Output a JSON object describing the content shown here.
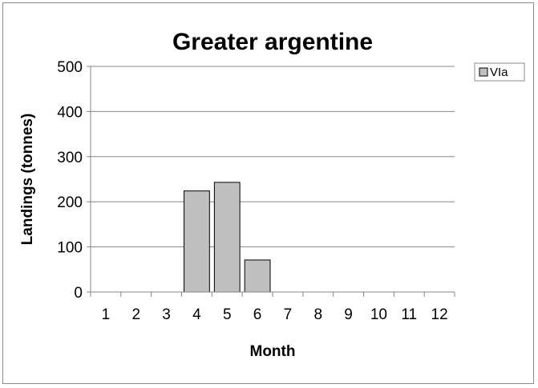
{
  "chart_data": {
    "type": "bar",
    "title": "Greater argentine",
    "xlabel": "Month",
    "ylabel": "Landings (tonnes)",
    "ylim": [
      0,
      500
    ],
    "yticks": [
      0,
      100,
      200,
      300,
      400,
      500
    ],
    "categories": [
      "1",
      "2",
      "3",
      "4",
      "5",
      "6",
      "7",
      "8",
      "9",
      "10",
      "11",
      "12"
    ],
    "series": [
      {
        "name": "VIa",
        "values": [
          0,
          0,
          0,
          224,
          243,
          71,
          0,
          0,
          0,
          0,
          0,
          0
        ]
      }
    ],
    "grid": true,
    "legend": "top-right",
    "colors": {
      "bar_fill": "#c0c0c0",
      "bar_stroke": "#000000",
      "grid": "#868686"
    }
  }
}
